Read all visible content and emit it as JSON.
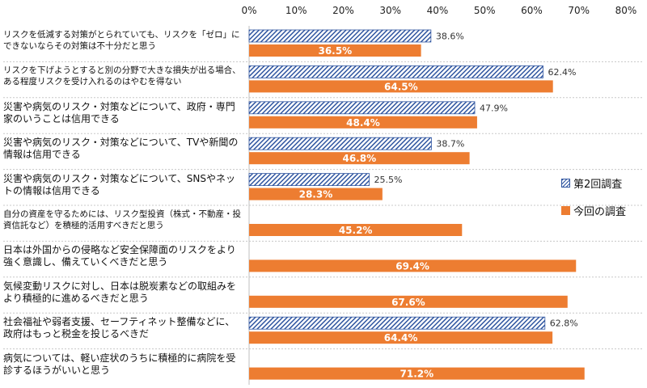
{
  "chart_data": {
    "type": "bar",
    "orientation": "horizontal",
    "xlim": [
      0,
      80
    ],
    "x_ticks": [
      "0%",
      "10%",
      "20%",
      "30%",
      "40%",
      "50%",
      "60%",
      "70%",
      "80%"
    ],
    "categories": [
      "リスクを低減する対策がとられていても、リスクを「ゼロ」にできないならその対策は不十分だと思う",
      "リスクを下げようとすると別の分野で大きな損失が出る場合、ある程度リスクを受け入れるのはやむを得ない",
      "災害や病気のリスク・対策などについて、政府・専門家のいうことは信用できる",
      "災害や病気のリスク・対策などについて、TVや新聞の情報は信用できる",
      "災害や病気のリスク・対策などについて、SNSやネットの情報は信用できる",
      "自分の資産を守るためには、リスク型投資（株式・不動産・投資信託など）を積極的活用すべきだと思う",
      "日本は外国からの侵略など安全保障面のリスクをより強く意識し、備えていくべきだと思う",
      "気候変動リスクに対し、日本は脱炭素などの取組みをより積極的に進めるべきだと思う",
      "社会福祉や弱者支援、セーフティネット整備などに、政府はもっと税金を投じるべきだ",
      "病気については、軽い症状のうちに積極的に病院を受診するほうがいいと思う"
    ],
    "series": [
      {
        "name": "第2回調査",
        "color": "#2f55a0",
        "pattern": "diagonal-hatch",
        "values": [
          38.6,
          62.4,
          47.9,
          38.7,
          25.5,
          null,
          null,
          null,
          62.8,
          null
        ],
        "labels": [
          "38.6%",
          "62.4%",
          "47.9%",
          "38.7%",
          "25.5%",
          "",
          "",
          "",
          "62.8%",
          ""
        ]
      },
      {
        "name": "今回の調査",
        "color": "#ed7d31",
        "values": [
          36.5,
          64.5,
          48.4,
          46.8,
          28.3,
          45.2,
          69.4,
          67.6,
          64.4,
          71.2
        ],
        "labels": [
          "36.5%",
          "64.5%",
          "48.4%",
          "46.8%",
          "28.3%",
          "45.2%",
          "69.4%",
          "67.6%",
          "64.4%",
          "71.2%"
        ]
      }
    ],
    "legend_position": "right",
    "grid": false
  }
}
